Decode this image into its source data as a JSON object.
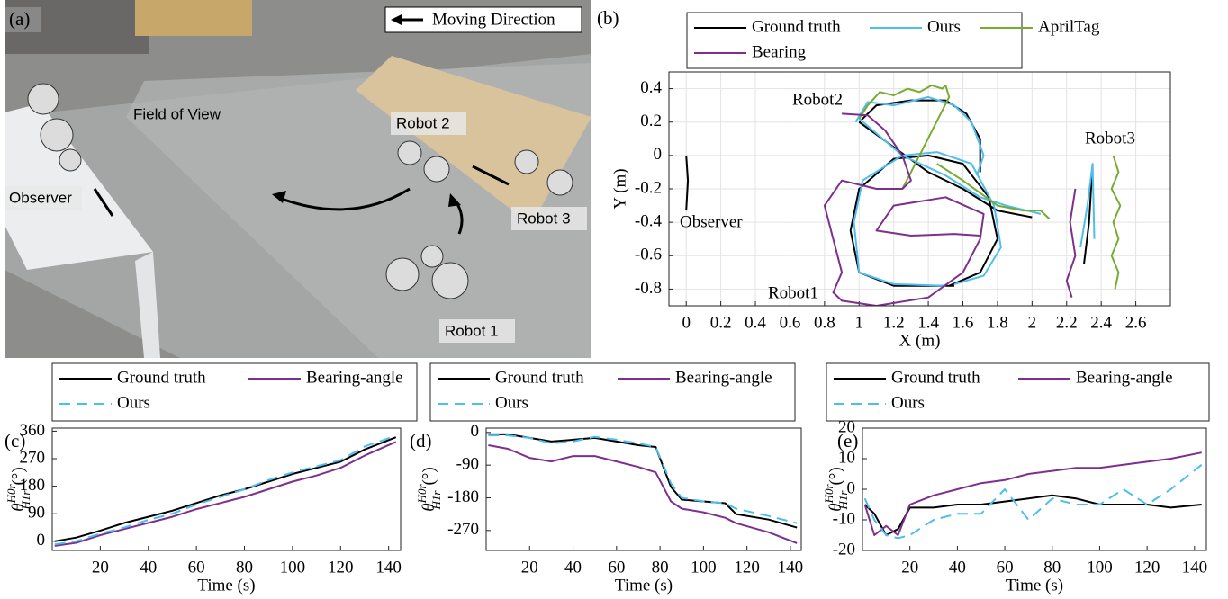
{
  "photo": {
    "panel": "(a)",
    "legend": "Moving Direction",
    "labels": [
      "Field of View",
      "Robot 2",
      "Observer",
      "Robot 3",
      "Robot 1"
    ]
  },
  "chart_data": [
    {
      "type": "line",
      "panel": "(b)",
      "xlabel": "X (m)",
      "ylabel": "Y (m)",
      "xlim": [
        -0.1,
        2.8
      ],
      "ylim": [
        -0.9,
        0.5
      ],
      "xticks": [
        0,
        0.2,
        0.4,
        0.6,
        0.8,
        1,
        1.2,
        1.4,
        1.6,
        1.8,
        2,
        2.2,
        2.4,
        2.6
      ],
      "yticks": [
        -0.8,
        -0.6,
        -0.4,
        -0.2,
        0,
        0.2,
        0.4
      ],
      "grid": true,
      "annotations": [
        "Robot2",
        "Robot3",
        "Observer",
        "Robot1"
      ],
      "series": [
        {
          "name": "Ground truth",
          "color": "#000000",
          "x": [
            0,
            0.01,
            0,
            null,
            1.0,
            1.1,
            1.3,
            1.5,
            1.62,
            1.7,
            1.7,
            null,
            1.0,
            1.2,
            1.4,
            1.6,
            1.8,
            2.0,
            null,
            1.55,
            1.2,
            1.0,
            0.95,
            1.0,
            1.2,
            1.4,
            1.6,
            1.75,
            1.8,
            1.7,
            1.52,
            null,
            2.3,
            2.33,
            2.35
          ],
          "y": [
            0,
            -0.15,
            -0.33,
            null,
            0.2,
            0.3,
            0.33,
            0.33,
            0.25,
            0.1,
            -0.1,
            null,
            0.2,
            0.05,
            -0.1,
            -0.2,
            -0.33,
            -0.37,
            null,
            -0.78,
            -0.78,
            -0.7,
            -0.45,
            -0.2,
            -0.02,
            0,
            -0.05,
            -0.25,
            -0.5,
            -0.7,
            -0.78,
            null,
            -0.65,
            -0.4,
            -0.05
          ]
        },
        {
          "name": "Ours",
          "color": "#4dbeee",
          "x": [
            0.98,
            1.05,
            1.2,
            1.4,
            1.55,
            1.65,
            1.72,
            1.68,
            null,
            1.0,
            1.25,
            1.5,
            1.7,
            1.85,
            2.05,
            null,
            1.5,
            1.2,
            1.0,
            0.97,
            1.02,
            1.25,
            1.45,
            1.65,
            1.78,
            1.82,
            1.72,
            1.55,
            null,
            2.28,
            2.32,
            2.35,
            2.36
          ],
          "y": [
            0.2,
            0.32,
            0.3,
            0.35,
            0.3,
            0.2,
            0.0,
            -0.12,
            null,
            0.22,
            0.0,
            -0.12,
            -0.25,
            -0.3,
            -0.35,
            null,
            -0.78,
            -0.77,
            -0.7,
            -0.4,
            -0.15,
            0.0,
            0.02,
            -0.05,
            -0.3,
            -0.55,
            -0.72,
            -0.77,
            null,
            -0.55,
            -0.3,
            -0.05,
            -0.5
          ]
        },
        {
          "name": "AprilTag",
          "color": "#77ac30",
          "x": [
            1.0,
            1.05,
            1.12,
            1.2,
            1.28,
            1.35,
            1.42,
            1.48,
            1.5,
            1.52,
            1.3,
            1.25,
            null,
            1.45,
            1.6,
            1.8,
            1.95,
            2.05,
            2.1,
            null,
            2.47,
            2.5,
            2.46,
            2.51,
            2.47,
            2.5,
            2.46,
            2.5,
            2.48
          ],
          "y": [
            0.22,
            0.3,
            0.38,
            0.36,
            0.4,
            0.38,
            0.42,
            0.4,
            0.42,
            0.35,
            -0.1,
            -0.2,
            null,
            -0.05,
            -0.15,
            -0.3,
            -0.33,
            -0.33,
            -0.38,
            null,
            0.0,
            -0.1,
            -0.2,
            -0.3,
            -0.4,
            -0.5,
            -0.6,
            -0.7,
            -0.8
          ]
        },
        {
          "name": "Bearing",
          "color": "#7e2f8e",
          "x": [
            0.9,
            1.05,
            1.15,
            1.25,
            1.3,
            1.25,
            1.1,
            0.9,
            0.8,
            0.85,
            0.9,
            0.85,
            0.9,
            1.1,
            1.4,
            1.6,
            1.7,
            1.72,
            1.5,
            1.2,
            1.1,
            1.3,
            1.55,
            1.7,
            null,
            2.25,
            2.22,
            2.25,
            2.2,
            2.23
          ],
          "y": [
            0.25,
            0.24,
            0.15,
            0.0,
            -0.15,
            -0.2,
            -0.2,
            -0.15,
            -0.3,
            -0.5,
            -0.7,
            -0.82,
            -0.87,
            -0.9,
            -0.85,
            -0.7,
            -0.5,
            -0.35,
            -0.25,
            -0.3,
            -0.45,
            -0.48,
            -0.47,
            -0.48,
            null,
            -0.2,
            -0.4,
            -0.6,
            -0.75,
            -0.85
          ]
        }
      ]
    },
    {
      "type": "line",
      "panel": "(c)",
      "xlabel": "Time (s)",
      "ylabel_symbol": "θ",
      "ylabel_sup": "H0r",
      "ylabel_sub": "H1r",
      "ylabel_unit": "(°)",
      "xlim": [
        0,
        145
      ],
      "ylim": [
        -30,
        370
      ],
      "xticks": [
        20,
        40,
        60,
        80,
        100,
        120,
        140
      ],
      "yticks": [
        0,
        90,
        180,
        270,
        360
      ],
      "grid": false,
      "x": [
        1,
        10,
        20,
        30,
        40,
        50,
        60,
        70,
        80,
        90,
        100,
        110,
        120,
        130,
        143
      ],
      "series": [
        {
          "name": "Ground truth",
          "color": "#000000",
          "values": [
            0,
            12,
            35,
            60,
            80,
            100,
            125,
            150,
            170,
            195,
            220,
            240,
            260,
            300,
            340
          ]
        },
        {
          "name": "Bearing-angle",
          "color": "#7e2f8e",
          "values": [
            -15,
            -5,
            20,
            40,
            60,
            80,
            105,
            125,
            145,
            170,
            195,
            215,
            240,
            280,
            325
          ]
        },
        {
          "name": "Ours",
          "color": "#4dbeee",
          "dash": true,
          "values": [
            -10,
            0,
            25,
            45,
            70,
            90,
            120,
            145,
            170,
            200,
            225,
            245,
            265,
            310,
            345
          ]
        }
      ]
    },
    {
      "type": "line",
      "panel": "(d)",
      "xlabel": "Time (s)",
      "ylabel_symbol": "θ",
      "ylabel_sup": "H0r",
      "ylabel_sub": "H1r",
      "ylabel_unit": "(°)",
      "xlim": [
        0,
        145
      ],
      "ylim": [
        -325,
        12
      ],
      "xticks": [
        20,
        40,
        60,
        80,
        100,
        120,
        140
      ],
      "yticks": [
        -270,
        -180,
        -90,
        0
      ],
      "grid": false,
      "x": [
        1,
        10,
        20,
        30,
        40,
        50,
        60,
        70,
        78,
        85,
        90,
        100,
        110,
        115,
        130,
        143
      ],
      "series": [
        {
          "name": "Ground truth",
          "color": "#000000",
          "values": [
            -5,
            -5,
            -15,
            -25,
            -20,
            -15,
            -25,
            -35,
            -40,
            -150,
            -185,
            -190,
            -195,
            -225,
            -240,
            -262
          ]
        },
        {
          "name": "Bearing-angle",
          "color": "#7e2f8e",
          "values": [
            -35,
            -45,
            -70,
            -80,
            -65,
            -65,
            -80,
            -95,
            -110,
            -190,
            -210,
            -220,
            -235,
            -250,
            -275,
            -305
          ]
        },
        {
          "name": "Ours",
          "color": "#4dbeee",
          "dash": true,
          "values": [
            -8,
            -8,
            -15,
            -30,
            -25,
            -12,
            -20,
            -30,
            -40,
            -140,
            -180,
            -190,
            -195,
            -210,
            -230,
            -250
          ]
        }
      ]
    },
    {
      "type": "line",
      "panel": "(e)",
      "xlabel": "Time (s)",
      "ylabel_symbol": "θ",
      "ylabel_sup": "H0r",
      "ylabel_sub": "H1r",
      "ylabel_unit": "(°)",
      "xlim": [
        0,
        145
      ],
      "ylim": [
        -20,
        20
      ],
      "xticks": [
        20,
        40,
        60,
        80,
        100,
        120,
        140
      ],
      "yticks": [
        -20,
        -10,
        0,
        10,
        20
      ],
      "grid": false,
      "x": [
        1,
        5,
        10,
        15,
        20,
        30,
        40,
        50,
        60,
        70,
        80,
        90,
        100,
        110,
        120,
        130,
        143
      ],
      "series": [
        {
          "name": "Ground truth",
          "color": "#000000",
          "values": [
            -5,
            -8,
            -15,
            -13,
            -6,
            -6,
            -5,
            -5,
            -4,
            -3,
            -2,
            -3,
            -5,
            -5,
            -5,
            -6,
            -5
          ]
        },
        {
          "name": "Bearing-angle",
          "color": "#7e2f8e",
          "values": [
            -5,
            -15,
            -12,
            -15,
            -5,
            -2,
            0,
            2,
            3,
            5,
            6,
            7,
            7,
            8,
            9,
            10,
            12
          ]
        },
        {
          "name": "Ours",
          "color": "#4dbeee",
          "dash": true,
          "values": [
            -3,
            -10,
            -15,
            -16,
            -15,
            -10,
            -8,
            -8,
            0,
            -10,
            -3,
            -5,
            -5,
            0,
            -5,
            0,
            8
          ]
        }
      ]
    }
  ]
}
